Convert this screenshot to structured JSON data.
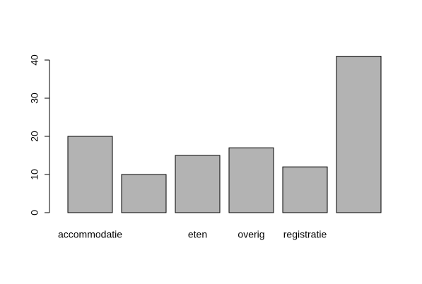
{
  "chart_data": {
    "type": "bar",
    "categories": [
      "accommodatie",
      null,
      "eten",
      "overig",
      "registratie",
      null
    ],
    "values": [
      20,
      10,
      15,
      17,
      12,
      41
    ],
    "color": "#b3b3b3",
    "ylim": [
      0,
      40
    ],
    "yticks": [
      0,
      10,
      20,
      30,
      40
    ]
  }
}
